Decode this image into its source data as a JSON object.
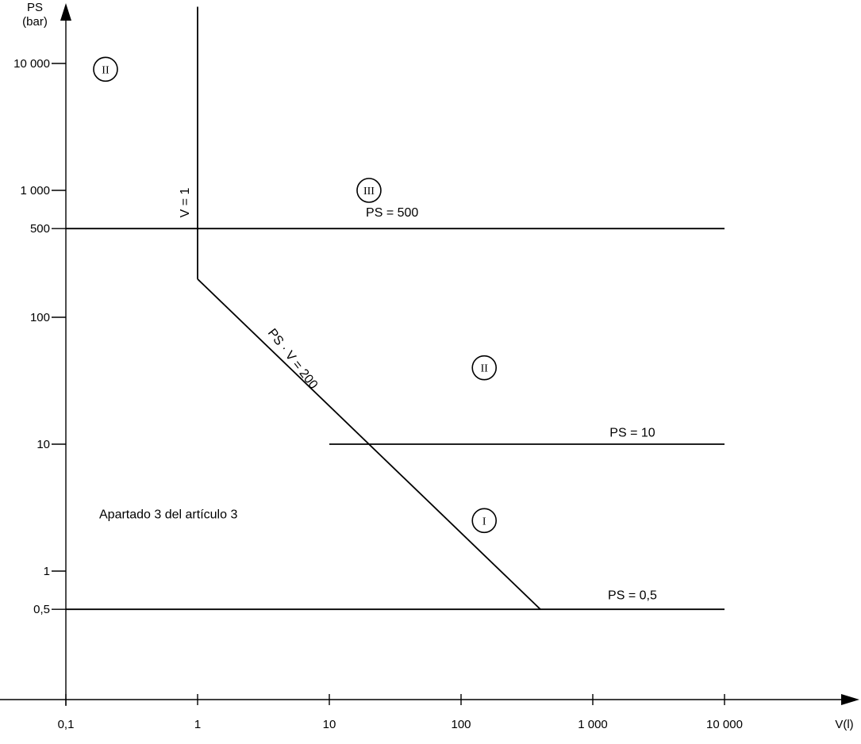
{
  "chart_data": {
    "type": "line",
    "xlabel": "V(l)",
    "ylabel": "PS",
    "ylabel_unit": "(bar)",
    "x_scale": "log",
    "y_scale": "log",
    "xlim": [
      0.1,
      10000
    ],
    "ylim": [
      0.5,
      10000
    ],
    "grid": false,
    "x_ticks": [
      {
        "value": 0.1,
        "label": "0,1"
      },
      {
        "value": 1,
        "label": "1"
      },
      {
        "value": 10,
        "label": "10"
      },
      {
        "value": 100,
        "label": "100"
      },
      {
        "value": 1000,
        "label": "1 000"
      },
      {
        "value": 10000,
        "label": "10 000"
      }
    ],
    "y_ticks": [
      {
        "value": 0.5,
        "label": "0,5"
      },
      {
        "value": 1,
        "label": "1"
      },
      {
        "value": 10,
        "label": "10"
      },
      {
        "value": 100,
        "label": "100"
      },
      {
        "value": 500,
        "label": "500"
      },
      {
        "value": 1000,
        "label": "1 000"
      },
      {
        "value": 10000,
        "label": "10 000"
      }
    ],
    "lines": [
      {
        "label": "PS = 500",
        "points": [
          [
            0.1,
            500
          ],
          [
            10000,
            500
          ]
        ],
        "label_at": [
          30,
          620
        ]
      },
      {
        "label": "PS = 10",
        "points": [
          [
            10,
            10
          ],
          [
            10000,
            10
          ]
        ],
        "label_at": [
          2000,
          11.5
        ]
      },
      {
        "label": "PS = 0,5",
        "points": [
          [
            0.1,
            0.5
          ],
          [
            10000,
            0.5
          ]
        ],
        "label_at": [
          2000,
          0.6
        ]
      },
      {
        "label": "V = 1",
        "points": [
          [
            1,
            200
          ],
          [
            1,
            28000
          ]
        ],
        "label_at": [
          0.86,
          800
        ],
        "rotate": -90
      },
      {
        "label": "PS · V = 200",
        "points": [
          [
            1,
            200
          ],
          [
            400,
            0.5
          ]
        ],
        "label_at": [
          5,
          45
        ],
        "rotate": 52
      }
    ],
    "regions": [
      {
        "label": "II",
        "at": [
          0.2,
          9000
        ]
      },
      {
        "label": "III",
        "at": [
          20,
          1000
        ]
      },
      {
        "label": "II",
        "at": [
          150,
          40
        ]
      },
      {
        "label": "I",
        "at": [
          150,
          2.5
        ]
      }
    ],
    "annotations": [
      {
        "text": "Apartado 3 del artículo 3",
        "at": [
          0.25,
          2.8
        ]
      }
    ]
  }
}
